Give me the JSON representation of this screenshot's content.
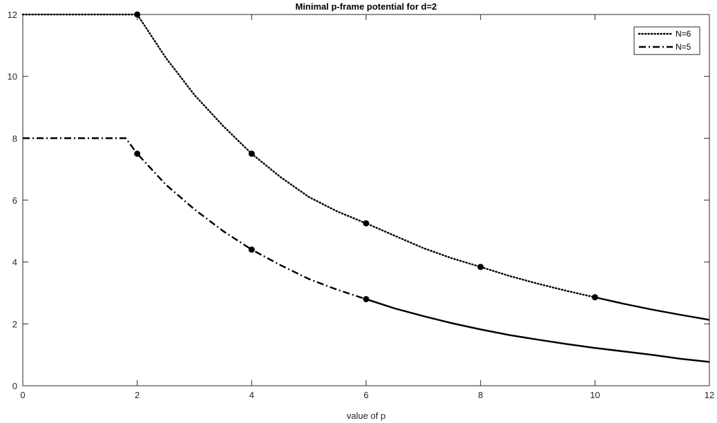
{
  "chart_data": {
    "type": "line",
    "title": "Minimal p-frame potential for d=2",
    "xlabel": "value of p",
    "ylabel": "",
    "xlim": [
      0,
      12
    ],
    "ylim": [
      0,
      12
    ],
    "xticks": [
      "0",
      "2",
      "4",
      "6",
      "8",
      "10",
      "12"
    ],
    "yticks": [
      "0",
      "2",
      "4",
      "6",
      "8",
      "10",
      "12"
    ],
    "grid": false,
    "legend_position": "top-right",
    "colors": {
      "line": "#000000",
      "axis": "#262626",
      "background": "#ffffff"
    },
    "legend": [
      {
        "label": "N=6",
        "style": "dotted"
      },
      {
        "label": "N=5",
        "style": "dash-dot"
      }
    ],
    "series": [
      {
        "name": "N=6",
        "style": "dotted",
        "x": [
          0,
          2,
          2.5,
          3,
          3.5,
          4,
          4.5,
          5,
          5.5,
          6,
          6.5,
          7,
          7.5,
          8,
          8.5,
          9,
          9.5,
          10
        ],
        "y": [
          12,
          12,
          10.6,
          9.4,
          8.4,
          7.5,
          6.75,
          6.1,
          5.63,
          5.25,
          4.85,
          4.45,
          4.12,
          3.84,
          3.55,
          3.3,
          3.07,
          2.86
        ]
      },
      {
        "name": "N=5",
        "style": "dash-dot",
        "x": [
          0,
          1.8,
          2,
          2.5,
          3,
          3.5,
          4,
          4.5,
          5,
          5.5,
          6
        ],
        "y": [
          8,
          8,
          7.5,
          6.5,
          5.7,
          5.0,
          4.4,
          3.9,
          3.45,
          3.1,
          2.8
        ]
      },
      {
        "name": "",
        "style": "solid",
        "x": [
          10,
          10.5,
          11,
          11.5,
          12
        ],
        "y": [
          2.86,
          2.65,
          2.46,
          2.29,
          2.13
        ]
      },
      {
        "name": "",
        "style": "solid",
        "x": [
          6,
          6.5,
          7,
          7.5,
          8,
          8.5,
          9,
          9.5,
          10,
          10.5,
          11,
          11.5,
          12
        ],
        "y": [
          2.8,
          2.5,
          2.25,
          2.02,
          1.82,
          1.64,
          1.49,
          1.35,
          1.22,
          1.11,
          1.0,
          0.87,
          0.77
        ]
      }
    ],
    "markers": [
      {
        "x": 2,
        "y": 12
      },
      {
        "x": 4,
        "y": 7.5
      },
      {
        "x": 6,
        "y": 5.25
      },
      {
        "x": 8,
        "y": 3.84
      },
      {
        "x": 10,
        "y": 2.86
      },
      {
        "x": 2,
        "y": 7.5
      },
      {
        "x": 4,
        "y": 4.4
      },
      {
        "x": 6,
        "y": 2.8
      }
    ]
  }
}
